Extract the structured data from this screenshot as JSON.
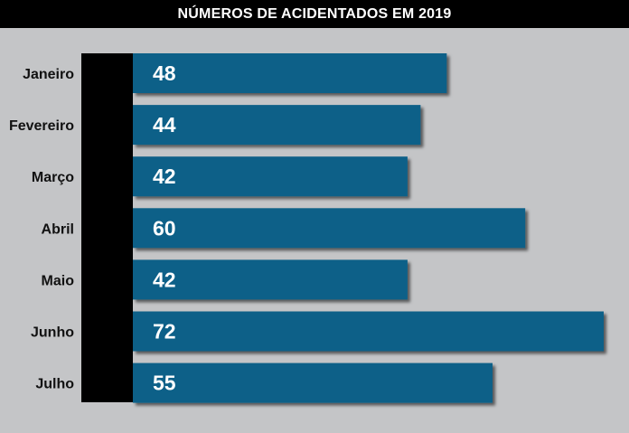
{
  "colors": {
    "background": "#c4c5c7",
    "bar": "#0f6088",
    "bar_shadow": "#1e1e1e",
    "axis_band": "#000000",
    "title_bg": "#000000",
    "title_text": "#ffffff"
  },
  "chart_data": {
    "type": "bar",
    "orientation": "horizontal",
    "title": "NÚMEROS DE ACIDENTADOS EM 2019",
    "xlabel": "",
    "ylabel": "",
    "categories": [
      "Janeiro",
      "Fevereiro",
      "Março",
      "Abril",
      "Maio",
      "Junho",
      "Julho"
    ],
    "values": [
      48,
      44,
      42,
      60,
      42,
      72,
      55
    ],
    "xlim": [
      0,
      72
    ],
    "grid": false,
    "legend": "none",
    "data_labels": true
  }
}
